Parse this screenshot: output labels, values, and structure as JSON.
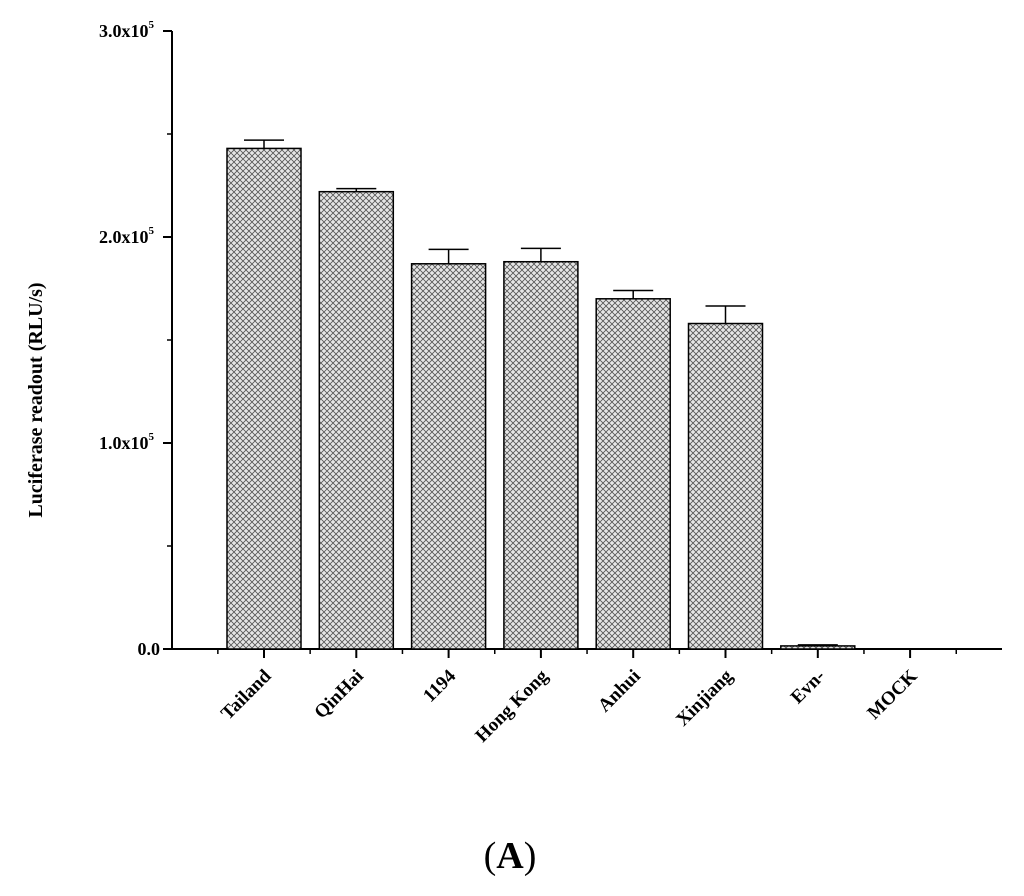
{
  "chart_data": {
    "type": "bar",
    "title": "",
    "xlabel": "",
    "ylabel": "Luciferase readout (RLU/s)",
    "ylim": [
      0,
      300000
    ],
    "yticks": [
      {
        "value": 0,
        "mantissa": "0.0",
        "exponent": ""
      },
      {
        "value": 100000,
        "mantissa": "1.0x10",
        "exponent": "5"
      },
      {
        "value": 200000,
        "mantissa": "2.0x10",
        "exponent": "5"
      },
      {
        "value": 300000,
        "mantissa": "3.0x10",
        "exponent": "5"
      }
    ],
    "categories": [
      "Tailand",
      "QinHai",
      "1194",
      "Hong Kong",
      "Anhui",
      "Xinjiang",
      "Evn-",
      "MOCK"
    ],
    "values": [
      243000,
      222000,
      187000,
      188000,
      170000,
      158000,
      1500,
      0
    ],
    "errors": [
      4000,
      1500,
      7000,
      6500,
      4000,
      8500,
      500,
      0
    ],
    "bar_pattern": "crosshatch",
    "bar_fill": "#e4e4e4",
    "bar_stroke": "#000000",
    "grid": false,
    "legend": "none"
  },
  "panel_label": {
    "open": "(",
    "letter": "A",
    "close": ")"
  }
}
